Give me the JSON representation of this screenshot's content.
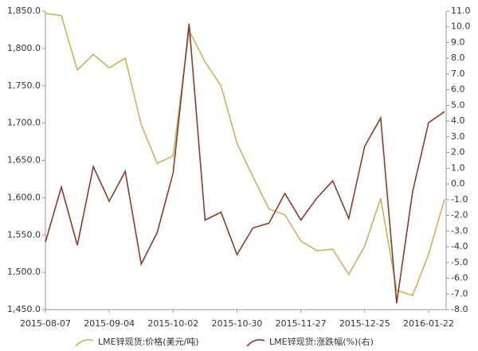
{
  "chart_data": {
    "type": "line",
    "categories": [
      "2015-08-07",
      null,
      null,
      null,
      "2015-09-04",
      null,
      null,
      null,
      "2015-10-02",
      null,
      null,
      null,
      "2015-10-30",
      null,
      null,
      null,
      "2015-11-27",
      null,
      null,
      null,
      "2015-12-25",
      null,
      null,
      null,
      "2016-01-22",
      null
    ],
    "series": [
      {
        "name": "LME锌现货:价格(美元/吨)",
        "color": "#c8b45a",
        "values": [
          1847,
          1844,
          1771,
          1792,
          1774,
          1787,
          1698,
          1646,
          1656,
          1824,
          1782,
          1750,
          1673,
          1628,
          1585,
          1577,
          1542,
          1529,
          1531,
          1497,
          1535,
          1599,
          1476,
          1469,
          1524,
          1598
        ]
      },
      {
        "name": "LME锌现货:涨跌幅(%)(右)",
        "color": "#8b3a2e",
        "axis": "y2",
        "values": [
          -3.7,
          -0.2,
          -3.9,
          1.1,
          -1.1,
          0.8,
          -5.1,
          -3.1,
          0.7,
          10.2,
          -2.3,
          -1.8,
          -4.5,
          -2.8,
          -2.5,
          -0.6,
          -2.3,
          -0.9,
          0.2,
          -2.2,
          2.4,
          4.2,
          -7.6,
          -0.5,
          3.9,
          4.6
        ]
      }
    ],
    "ylim": [
      1450,
      1850
    ],
    "yticks": [
      {
        "value": 1450,
        "label": "1,450.0"
      },
      {
        "value": 1500,
        "label": "1,500.0"
      },
      {
        "value": 1550,
        "label": "1,550.0"
      },
      {
        "value": 1600,
        "label": "1,600.0"
      },
      {
        "value": 1650,
        "label": "1,650.0"
      },
      {
        "value": 1700,
        "label": "1,700.0"
      },
      {
        "value": 1750,
        "label": "1,750.0"
      },
      {
        "value": 1800,
        "label": "1,800.0"
      },
      {
        "value": 1850,
        "label": "1,850.0"
      }
    ],
    "y2lim": [
      -8,
      11
    ],
    "y2ticks": [
      {
        "value": -8,
        "label": "-8.0"
      },
      {
        "value": -7,
        "label": "-7.0"
      },
      {
        "value": -6,
        "label": "-6.0"
      },
      {
        "value": -5,
        "label": "-5.0"
      },
      {
        "value": -4,
        "label": "-4.0"
      },
      {
        "value": -3,
        "label": "-3.0"
      },
      {
        "value": -2,
        "label": "-2.0"
      },
      {
        "value": -1,
        "label": "-1.0"
      },
      {
        "value": 0,
        "label": "0.0"
      },
      {
        "value": 1,
        "label": "1.0"
      },
      {
        "value": 2,
        "label": "2.0"
      },
      {
        "value": 3,
        "label": "3.0"
      },
      {
        "value": 4,
        "label": "4.0"
      },
      {
        "value": 5,
        "label": "5.0"
      },
      {
        "value": 6,
        "label": "6.0"
      },
      {
        "value": 7,
        "label": "7.0"
      },
      {
        "value": 8,
        "label": "8.0"
      },
      {
        "value": 9,
        "label": "9.0"
      },
      {
        "value": 10,
        "label": "10.0"
      },
      {
        "value": 11,
        "label": "11.0"
      }
    ],
    "grid": false,
    "legend": "bottom"
  }
}
